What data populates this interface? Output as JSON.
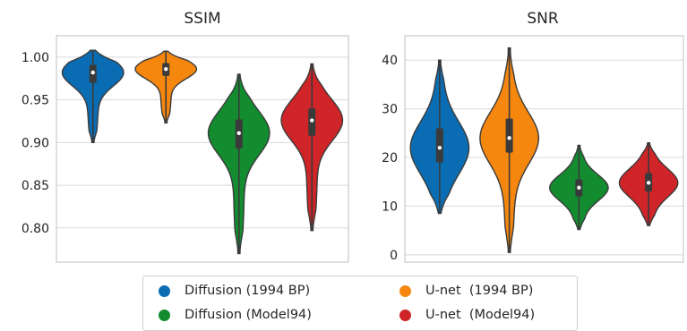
{
  "chart_data": [
    {
      "type": "violin",
      "title": "SSIM",
      "ylim": [
        0.76,
        1.025
      ],
      "yticks": [
        "0.80",
        "0.85",
        "0.90",
        "0.95",
        "1.00"
      ],
      "ytick_values": [
        0.8,
        0.85,
        0.9,
        0.95,
        1.0
      ],
      "grid": true,
      "series": [
        {
          "name": "Diffusion (1994 BP)",
          "color": "#0a6db3",
          "min": 0.9,
          "q1": 0.97,
          "median": 0.982,
          "q3": 0.991,
          "max": 1.008
        },
        {
          "name": "U-net  (1994 BP)",
          "color": "#f5870f",
          "min": 0.923,
          "q1": 0.978,
          "median": 0.986,
          "q3": 0.993,
          "max": 1.007
        },
        {
          "name": "Diffusion (Model94)",
          "color": "#128c2f",
          "min": 0.77,
          "q1": 0.893,
          "median": 0.911,
          "q3": 0.927,
          "max": 0.98
        },
        {
          "name": "U-net  (Model94)",
          "color": "#cf2428",
          "min": 0.797,
          "q1": 0.908,
          "median": 0.926,
          "q3": 0.94,
          "max": 0.992
        }
      ]
    },
    {
      "type": "violin",
      "title": "SNR",
      "ylim": [
        -1.5,
        45
      ],
      "yticks": [
        "0",
        "10",
        "20",
        "30",
        "40"
      ],
      "ytick_values": [
        0,
        10,
        20,
        30,
        40
      ],
      "grid": true,
      "series": [
        {
          "name": "Diffusion (1994 BP)",
          "color": "#0a6db3",
          "min": 8.5,
          "q1": 19.0,
          "median": 22.0,
          "q3": 26.0,
          "max": 40.0
        },
        {
          "name": "U-net  (1994 BP)",
          "color": "#f5870f",
          "min": 0.5,
          "q1": 21.0,
          "median": 24.0,
          "q3": 28.0,
          "max": 42.5
        },
        {
          "name": "Diffusion (Model94)",
          "color": "#128c2f",
          "min": 5.2,
          "q1": 12.0,
          "median": 13.8,
          "q3": 15.5,
          "max": 22.5
        },
        {
          "name": "U-net  (Model94)",
          "color": "#cf2428",
          "min": 6.0,
          "q1": 13.0,
          "median": 14.8,
          "q3": 16.8,
          "max": 23.0
        }
      ]
    }
  ],
  "legend": {
    "items": [
      {
        "label": "Diffusion (1994 BP)",
        "color": "#0a6db3"
      },
      {
        "label": "U-net  (1994 BP)",
        "color": "#f5870f"
      },
      {
        "label": "Diffusion (Model94)",
        "color": "#128c2f"
      },
      {
        "label": "U-net  (Model94)",
        "color": "#cf2428"
      }
    ]
  }
}
